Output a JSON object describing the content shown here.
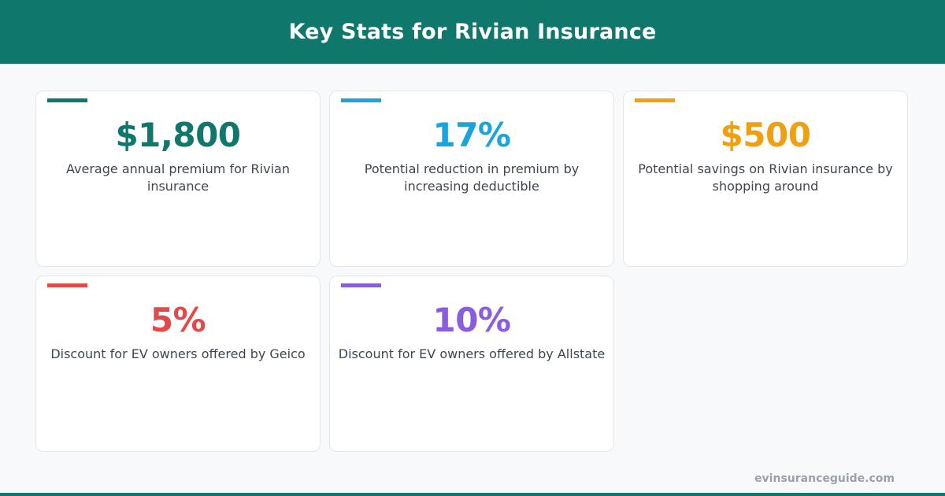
{
  "header": {
    "title": "Key Stats for Rivian Insurance",
    "color": "#10776c"
  },
  "stats": [
    {
      "value": "$1,800",
      "description": "Average annual premium for Rivian insurance",
      "color": "#10776c"
    },
    {
      "value": "17%",
      "description": "Potential reduction in premium by increasing deductible",
      "color": "#1aa3dc"
    },
    {
      "value": "$500",
      "description": "Potential savings on Rivian insurance by shopping around",
      "color": "#f0a00f"
    },
    {
      "value": "5%",
      "description": "Discount for EV owners offered by Geico",
      "color": "#e24a4a"
    },
    {
      "value": "10%",
      "description": "Discount for EV owners offered by Allstate",
      "color": "#8a5ce0"
    }
  ],
  "footer": {
    "brand": "evinsuranceguide.com"
  }
}
